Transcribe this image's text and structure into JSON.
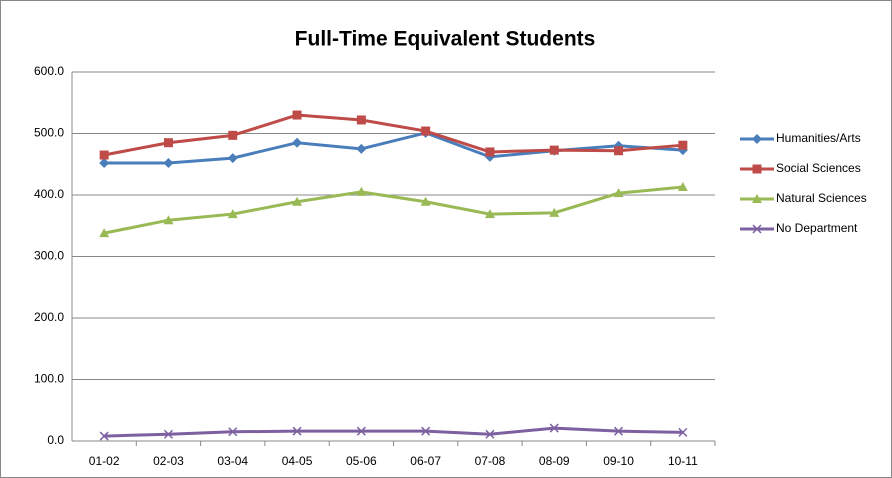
{
  "chart_data": {
    "type": "line",
    "title": "Full-Time Equivalent Students",
    "categories": [
      "01-02",
      "02-03",
      "03-04",
      "04-05",
      "05-06",
      "06-07",
      "07-08",
      "08-09",
      "09-10",
      "10-11"
    ],
    "series": [
      {
        "name": "Humanities/Arts",
        "color": "#4a7ebb",
        "marker": "diamond",
        "values": [
          452,
          452,
          460,
          485,
          475,
          501,
          462,
          472,
          480,
          473
        ]
      },
      {
        "name": "Social Sciences",
        "color": "#be4b48",
        "marker": "square",
        "values": [
          465,
          485,
          497,
          530,
          522,
          504,
          470,
          473,
          472,
          481
        ]
      },
      {
        "name": "Natural Sciences",
        "color": "#98b954",
        "marker": "triangle",
        "values": [
          338,
          359,
          369,
          389,
          405,
          389,
          369,
          371,
          403,
          413
        ]
      },
      {
        "name": "No Department",
        "color": "#7d60a0",
        "marker": "x",
        "values": [
          8,
          11,
          15,
          16,
          16,
          16,
          11,
          21,
          16,
          14
        ]
      }
    ],
    "ylim": [
      0,
      600
    ],
    "yticks": [
      {
        "value": 0,
        "label": "0.0"
      },
      {
        "value": 100,
        "label": "100.0"
      },
      {
        "value": 200,
        "label": "200.0"
      },
      {
        "value": 300,
        "label": "300.0"
      },
      {
        "value": 400,
        "label": "400.0"
      },
      {
        "value": 500,
        "label": "500.0"
      },
      {
        "value": 600,
        "label": "600.0"
      }
    ],
    "grid": true,
    "legend": "right"
  }
}
